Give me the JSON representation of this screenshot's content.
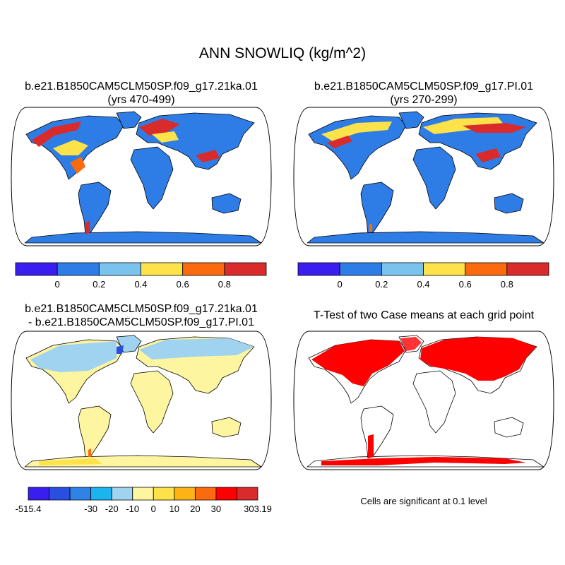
{
  "figure": {
    "title": "ANN SNOWLIQ (kg/m^2)",
    "significance_note": "Cells are significant at 0.1 level"
  },
  "panels": {
    "p1": {
      "line1": "b.e21.B1850CAM5CLM50SP.f09_g17.21ka.01",
      "line2": "(yrs 470-499)"
    },
    "p2": {
      "line1": "b.e21.B1850CAM5CLM50SP.f09_g17.PI.01",
      "line2": "(yrs 270-299)"
    },
    "p3": {
      "line1": "b.e21.B1850CAM5CLM50SP.f09_g17.21ka.01",
      "line2": "- b.e21.B1850CAM5CLM50SP.f09_g17.PI.01"
    },
    "p4": {
      "line1": "T-Test of two Case means at each grid point"
    }
  },
  "colors": {
    "abs_scale": [
      "#3a1ef0",
      "#2e7ce6",
      "#79c3ee",
      "#fde24a",
      "#fb6a0e",
      "#d92b2b"
    ],
    "diff_scale": [
      "#3a1ef0",
      "#2a4fe0",
      "#2e82e8",
      "#1ab4ef",
      "#9fd3f0",
      "#fdf5a0",
      "#fde24a",
      "#fbb413",
      "#fb6a0e",
      "#ff0000",
      "#d92b2b"
    ],
    "significant": "#ff0000"
  },
  "chart_data": [
    {
      "type": "heatmap",
      "title": "b.e21.B1850CAM5CLM50SP.f09_g17.21ka.01 (yrs 470-499)",
      "projection": "robinson-like global map",
      "colorbar_labels": [
        "0",
        "0.2",
        "0.4",
        "0.6",
        "0.8"
      ],
      "colorbar_bins": 6,
      "description_values": {
        "ocean": "missing",
        "most_land": "0-0.2",
        "ice_sheet_margins": "0.4-1.0"
      }
    },
    {
      "type": "heatmap",
      "title": "b.e21.B1850CAM5CLM50SP.f09_g17.PI.01 (yrs 270-299)",
      "projection": "robinson-like global map",
      "colorbar_labels": [
        "0",
        "0.2",
        "0.4",
        "0.6",
        "0.8"
      ],
      "colorbar_bins": 6
    },
    {
      "type": "heatmap",
      "title": "b.e21.B1850CAM5CLM50SP.f09_g17.21ka.01 - b.e21.B1850CAM5CLM50SP.f09_g17.PI.01",
      "projection": "robinson-like global map",
      "colorbar_labels": [
        "-515.4",
        "-30",
        "-20",
        "-10",
        "0",
        "10",
        "20",
        "30",
        "303.19"
      ],
      "colorbar_bins": 11
    },
    {
      "type": "heatmap",
      "title": "T-Test of two Case means at each grid point",
      "projection": "robinson-like global map",
      "legend_note": "Cells are significant at 0.1 level"
    }
  ]
}
